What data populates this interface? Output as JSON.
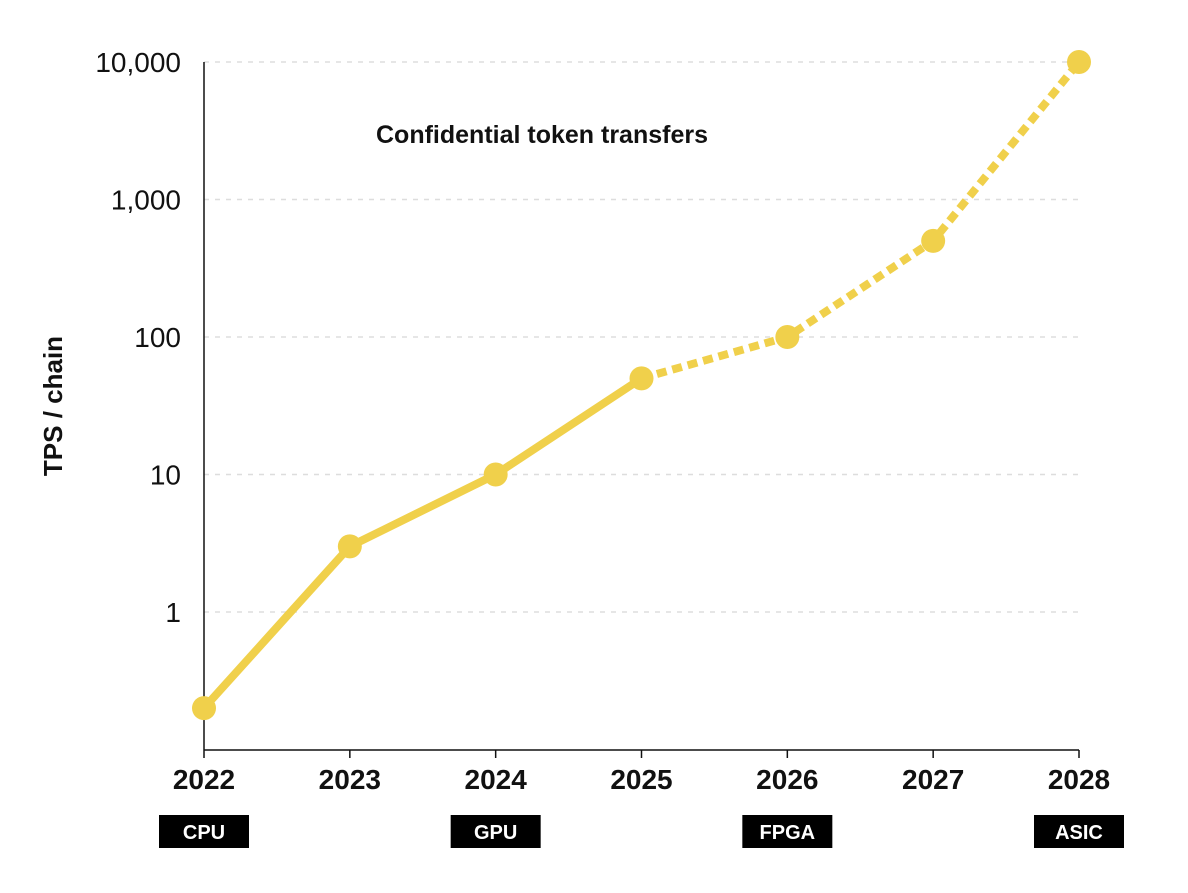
{
  "chart_data": {
    "type": "line",
    "title": "Confidential token transfers",
    "xlabel": "",
    "ylabel": "TPS / chain",
    "y_scale": "log",
    "ylim": [
      0.1,
      10000
    ],
    "y_ticks": [
      1,
      10,
      100,
      1000,
      10000
    ],
    "y_tick_labels": [
      "1",
      "10",
      "100",
      "1,000",
      "10,000"
    ],
    "grid": "horizontal dashed",
    "categories": [
      "2022",
      "2023",
      "2024",
      "2025",
      "2026",
      "2027",
      "2028"
    ],
    "series": [
      {
        "x": [
          "2022",
          "2023",
          "2024",
          "2025",
          "2026",
          "2027",
          "2028"
        ],
        "values": [
          0.2,
          3,
          10,
          50,
          100,
          500,
          10000
        ],
        "style": {
          "solid_through": "2025",
          "dashed_from": "2025"
        }
      }
    ],
    "hardware_labels": [
      {
        "x": "2022",
        "label": "CPU"
      },
      {
        "x": "2024",
        "label": "GPU"
      },
      {
        "x": "2026",
        "label": "FPGA"
      },
      {
        "x": "2028",
        "label": "ASIC"
      }
    ],
    "colors": {
      "line": "#f0d04b",
      "marker": "#f0d04b",
      "grid": "#dddddd",
      "axis": "#111111",
      "label_bg": "#000000"
    }
  }
}
